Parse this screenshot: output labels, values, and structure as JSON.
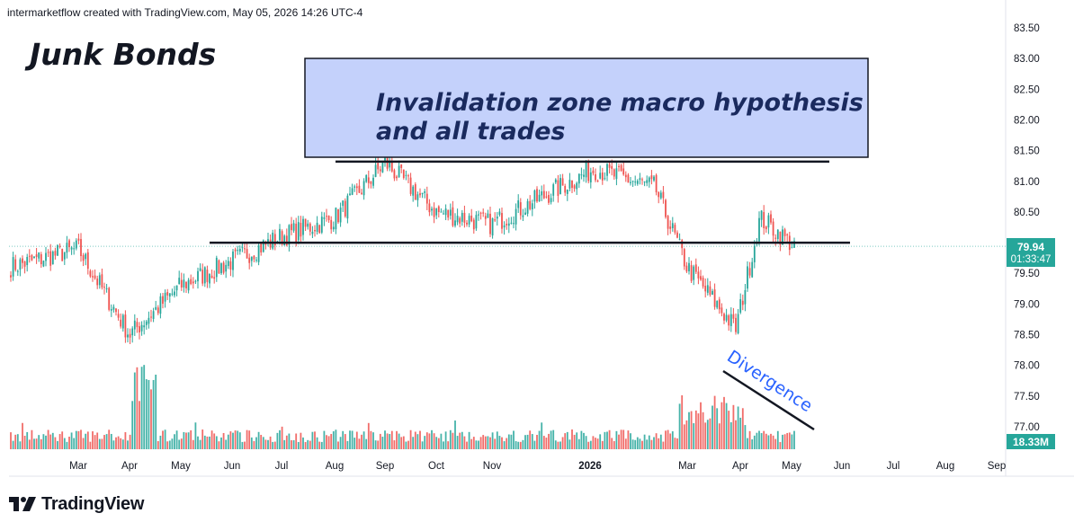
{
  "header": {
    "text": "intermarketflow created with TradingView.com, May 05, 2026 14:26 UTC-4"
  },
  "brand": {
    "name": "TradingView",
    "icon": "tradingview-logo-icon"
  },
  "colors": {
    "up": "#26a69a",
    "down": "#ef5350",
    "vol_up": "#26a69a",
    "vol_down": "#ef5350",
    "badge_price": "#26a69a",
    "badge_volume": "#26a69a",
    "zone_fill": "#c4d1fb",
    "zone_text": "#1a2a5e",
    "divergence_text": "#2962ff"
  },
  "chart_data": {
    "type": "candlestick",
    "title": "Junk Bonds",
    "price_axis": {
      "ticks": [
        "83.50",
        "83.00",
        "82.50",
        "82.00",
        "81.50",
        "81.00",
        "80.50",
        "80.00",
        "79.50",
        "79.00",
        "78.50",
        "78.00",
        "77.50",
        "77.00"
      ],
      "range": [
        76.55,
        83.6
      ]
    },
    "time_axis": {
      "ticks": [
        "Mar",
        "Apr",
        "May",
        "Jun",
        "Jul",
        "Aug",
        "Sep",
        "Oct",
        "Nov",
        "2026",
        "Mar",
        "Apr",
        "May",
        "Jun",
        "Jul",
        "Aug",
        "Sep"
      ]
    },
    "last_price": "79.94",
    "countdown": "01:33:47",
    "last_volume": "18.33M",
    "key_points": [
      {
        "time": "Feb 2025",
        "close": 79.6
      },
      {
        "time": "Mar 2025",
        "close": 79.9
      },
      {
        "time": "Apr 2025 low",
        "close": 78.5
      },
      {
        "time": "May 2025",
        "close": 79.3
      },
      {
        "time": "Jun 2025",
        "close": 79.7
      },
      {
        "time": "Jul 2025",
        "close": 80.1
      },
      {
        "time": "Aug 2025",
        "close": 80.4
      },
      {
        "time": "Sep 2025 high",
        "close": 81.3
      },
      {
        "time": "Oct 2025",
        "close": 80.5
      },
      {
        "time": "Nov 2025",
        "close": 80.3
      },
      {
        "time": "Jan 2026",
        "close": 81.2
      },
      {
        "time": "Feb 2026",
        "close": 80.9
      },
      {
        "time": "Mar 2026",
        "close": 79.6
      },
      {
        "time": "Apr 2026 low",
        "close": 78.6
      },
      {
        "time": "Apr 2026",
        "close": 80.4
      },
      {
        "time": "May 2026",
        "close": 79.94
      }
    ],
    "annotations": {
      "zone_label_line1": "Invalidation zone macro hypothesis",
      "zone_label_line2": "and all trades",
      "resistance_level": 81.32,
      "support_level": 80.0,
      "divergence_label": "Divergence"
    }
  }
}
